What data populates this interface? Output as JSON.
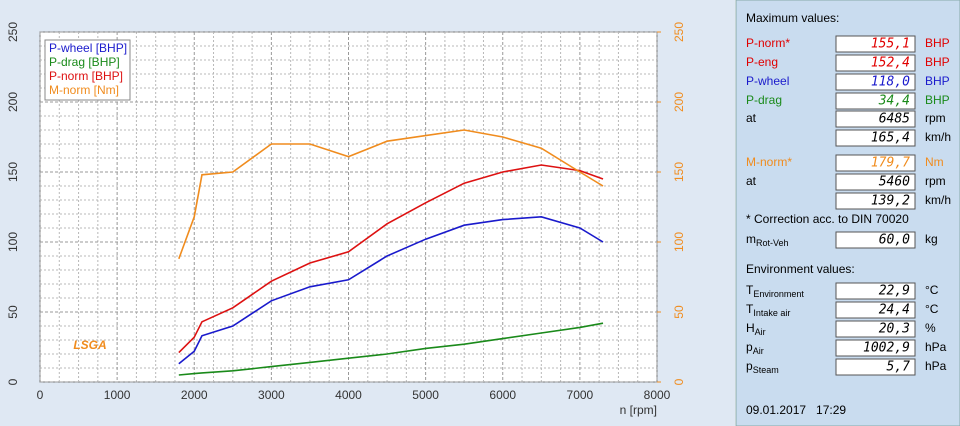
{
  "chart_data": {
    "type": "line",
    "x": [
      1800,
      2000,
      2100,
      2500,
      3000,
      3500,
      4000,
      4500,
      5000,
      5500,
      6000,
      6500,
      7000,
      7300
    ],
    "series": [
      {
        "name": "P-wheel [BHP]",
        "color": "#1a1acc",
        "values": [
          13,
          22,
          33,
          40,
          58,
          68,
          73,
          90,
          102,
          112,
          116,
          118,
          110,
          100
        ]
      },
      {
        "name": "P-drag [BHP]",
        "color": "#1a8a1a",
        "values": [
          5,
          6,
          6.5,
          8,
          11,
          14,
          17,
          20,
          24,
          27,
          31,
          35,
          39,
          42
        ]
      },
      {
        "name": "P-norm [BHP]",
        "color": "#dd1111",
        "values": [
          21,
          32,
          43,
          53,
          72,
          85,
          93,
          113,
          128,
          142,
          150,
          155,
          151,
          145
        ]
      },
      {
        "name": "M-norm [Nm]",
        "color": "#f08c1e",
        "axis": "y2",
        "values": [
          88,
          118,
          148,
          150,
          170,
          170,
          161,
          172,
          176,
          180,
          175,
          167,
          150,
          140
        ]
      }
    ],
    "x_label": "n [rpm]",
    "xlim": [
      0,
      8000
    ],
    "xticks": [
      0,
      1000,
      2000,
      3000,
      4000,
      5000,
      6000,
      7000,
      8000
    ],
    "ylim": [
      0,
      250
    ],
    "yticks": [
      0,
      50,
      100,
      150,
      200,
      250
    ],
    "y2lim": [
      0,
      250
    ],
    "y2ticks": [
      0,
      50,
      100,
      150,
      200,
      250
    ],
    "y2_color": "#f08c1e",
    "grid": true,
    "legend": "upper left"
  },
  "logo": "LSGA",
  "panel": {
    "max_title": "Maximum values:",
    "max_rows": [
      {
        "label": "P-norm*",
        "value": "155,1",
        "unit": "BHP",
        "color": "#e00000"
      },
      {
        "label": "P-eng",
        "value": "152,4",
        "unit": "BHP",
        "color": "#e00000"
      },
      {
        "label": "P-wheel",
        "value": "118,0",
        "unit": "BHP",
        "color": "#1a1acc"
      },
      {
        "label": "P-drag",
        "value": "34,4",
        "unit": "BHP",
        "color": "#1a8a1a"
      },
      {
        "label": "at",
        "value": "6485",
        "unit": "rpm",
        "color": "#000000"
      },
      {
        "value": "165,4",
        "unit": "km/h",
        "color": "#000000"
      },
      {
        "label": "M-norm*",
        "value": "179,7",
        "unit": "Nm",
        "color": "#f08c1e"
      },
      {
        "label": "at",
        "value": "5460",
        "unit": "rpm",
        "color": "#000000"
      },
      {
        "value": "139,2",
        "unit": "km/h",
        "color": "#000000"
      }
    ],
    "note": "* Correction acc. to DIN 70020",
    "mass": {
      "label": "m",
      "sub": "Rot-Veh",
      "value": "60,0",
      "unit": "kg"
    },
    "env_title": "Environment values:",
    "env_rows": [
      {
        "label": "T",
        "sub": "Environment",
        "value": "22,9",
        "unit": "°C"
      },
      {
        "label": "T",
        "sub": "Intake air",
        "value": "24,4",
        "unit": "°C"
      },
      {
        "label": "H",
        "sub": "Air",
        "value": "20,3",
        "unit": "%"
      },
      {
        "label": "p",
        "sub": "Air",
        "value": "1002,9",
        "unit": "hPa"
      },
      {
        "label": "p",
        "sub": "Steam",
        "value": "5,7",
        "unit": "hPa"
      }
    ],
    "datetime": "09.01.2017   17:29"
  }
}
